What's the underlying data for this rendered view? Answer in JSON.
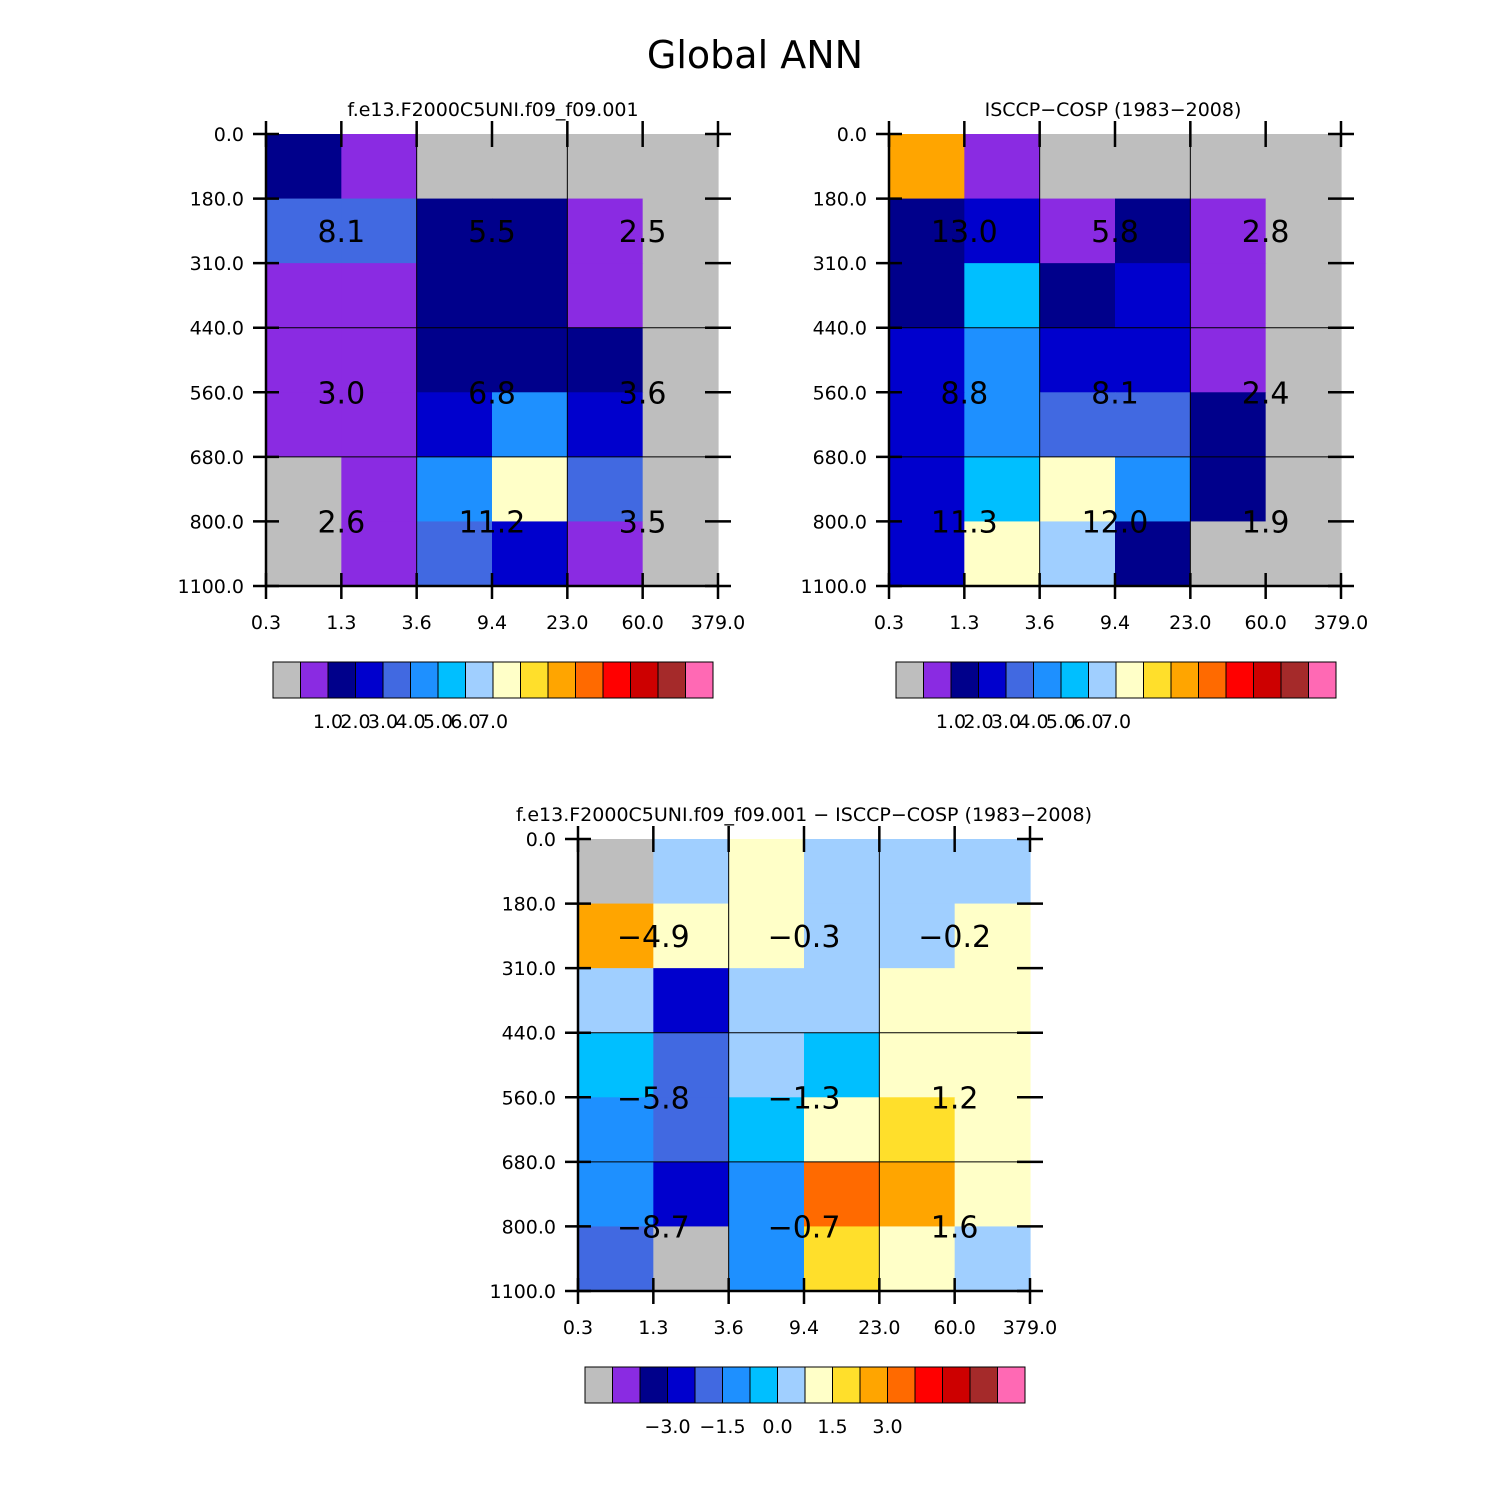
{
  "figure": {
    "title": "Global ANN"
  },
  "palette": {
    "cmap": [
      "#bebebe",
      "#8a2be2",
      "#00008b",
      "#0000cd",
      "#4169e1",
      "#1e90ff",
      "#00bfff",
      "#a0cfff",
      "#ffffc8",
      "#ffdf2b",
      "#ffa500",
      "#ff6a00",
      "#ff0000",
      "#cd0000",
      "#a52a2a",
      "#ff69b4"
    ],
    "grid_line": "#000000"
  },
  "chart_data": [
    {
      "type": "heatmap",
      "id": "model",
      "title": "f.e13.F2000C5UNI.f09_f09.001",
      "xlabel": "",
      "ylabel": "",
      "x_ticks": [
        "0.3",
        "1.3",
        "3.6",
        "9.4",
        "23.0",
        "60.0",
        "379.0"
      ],
      "y_ticks": [
        "0.0",
        "180.0",
        "310.0",
        "440.0",
        "560.0",
        "680.0",
        "800.0",
        "1100.0"
      ],
      "cell_colors": [
        [
          2,
          1,
          0,
          0,
          0,
          0
        ],
        [
          4,
          4,
          2,
          2,
          1,
          0
        ],
        [
          1,
          1,
          2,
          2,
          1,
          0
        ],
        [
          1,
          1,
          2,
          2,
          2,
          0
        ],
        [
          1,
          1,
          3,
          5,
          3,
          0
        ],
        [
          0,
          1,
          5,
          8,
          4,
          0
        ],
        [
          0,
          1,
          4,
          3,
          1,
          0
        ]
      ],
      "block_labels": [
        [
          "8.1",
          "5.5",
          "2.5"
        ],
        [
          "3.0",
          "6.8",
          "3.6"
        ],
        [
          "2.6",
          "11.2",
          "3.5"
        ]
      ],
      "colorbar": {
        "ticks": [
          "1.0",
          "2.0",
          "3.0",
          "4.0",
          "5.0",
          "6.0",
          "7.0"
        ],
        "tick_start": 1
      }
    },
    {
      "type": "heatmap",
      "id": "obs",
      "title": "ISCCP-COSP (1983-2008)",
      "xlabel": "",
      "ylabel": "",
      "x_ticks": [
        "0.3",
        "1.3",
        "3.6",
        "9.4",
        "23.0",
        "60.0",
        "379.0"
      ],
      "y_ticks": [
        "0.0",
        "180.0",
        "310.0",
        "440.0",
        "560.0",
        "680.0",
        "800.0",
        "1100.0"
      ],
      "cell_colors": [
        [
          10,
          1,
          0,
          0,
          0,
          0
        ],
        [
          2,
          3,
          1,
          2,
          1,
          0
        ],
        [
          2,
          6,
          2,
          3,
          1,
          0
        ],
        [
          3,
          5,
          3,
          3,
          1,
          0
        ],
        [
          3,
          5,
          4,
          4,
          2,
          0
        ],
        [
          3,
          6,
          8,
          5,
          2,
          0
        ],
        [
          3,
          8,
          7,
          2,
          0,
          0
        ]
      ],
      "block_labels": [
        [
          "13.0",
          "5.8",
          "2.8"
        ],
        [
          "8.8",
          "8.1",
          "2.4"
        ],
        [
          "11.3",
          "12.0",
          "1.9"
        ]
      ],
      "colorbar": {
        "ticks": [
          "1.0",
          "2.0",
          "3.0",
          "4.0",
          "5.0",
          "6.0",
          "7.0"
        ],
        "tick_start": 1
      }
    },
    {
      "type": "heatmap",
      "id": "diff",
      "title": "f.e13.F2000C5UNI.f09_f09.001 - ISCCP-COSP (1983-2008)",
      "xlabel": "",
      "ylabel": "",
      "x_ticks": [
        "0.3",
        "1.3",
        "3.6",
        "9.4",
        "23.0",
        "60.0",
        "379.0"
      ],
      "y_ticks": [
        "0.0",
        "180.0",
        "310.0",
        "440.0",
        "560.0",
        "680.0",
        "800.0",
        "1100.0"
      ],
      "cell_colors": [
        [
          0,
          7,
          8,
          7,
          7,
          7
        ],
        [
          10,
          8,
          8,
          7,
          7,
          8
        ],
        [
          7,
          3,
          7,
          7,
          8,
          8
        ],
        [
          6,
          4,
          7,
          6,
          8,
          8
        ],
        [
          5,
          4,
          6,
          8,
          9,
          8
        ],
        [
          5,
          3,
          5,
          11,
          10,
          8
        ],
        [
          4,
          0,
          5,
          9,
          8,
          7
        ]
      ],
      "block_labels": [
        [
          "-4.9",
          "-0.3",
          "-0.2"
        ],
        [
          "-5.8",
          "-1.3",
          "1.2"
        ],
        [
          "-8.7",
          "-0.7",
          "1.6"
        ]
      ],
      "colorbar": {
        "ticks": [
          "-3.0",
          "-1.5",
          "0.0",
          "1.5",
          "3.0"
        ],
        "tick_start": 2,
        "tick_step": 2
      }
    }
  ]
}
